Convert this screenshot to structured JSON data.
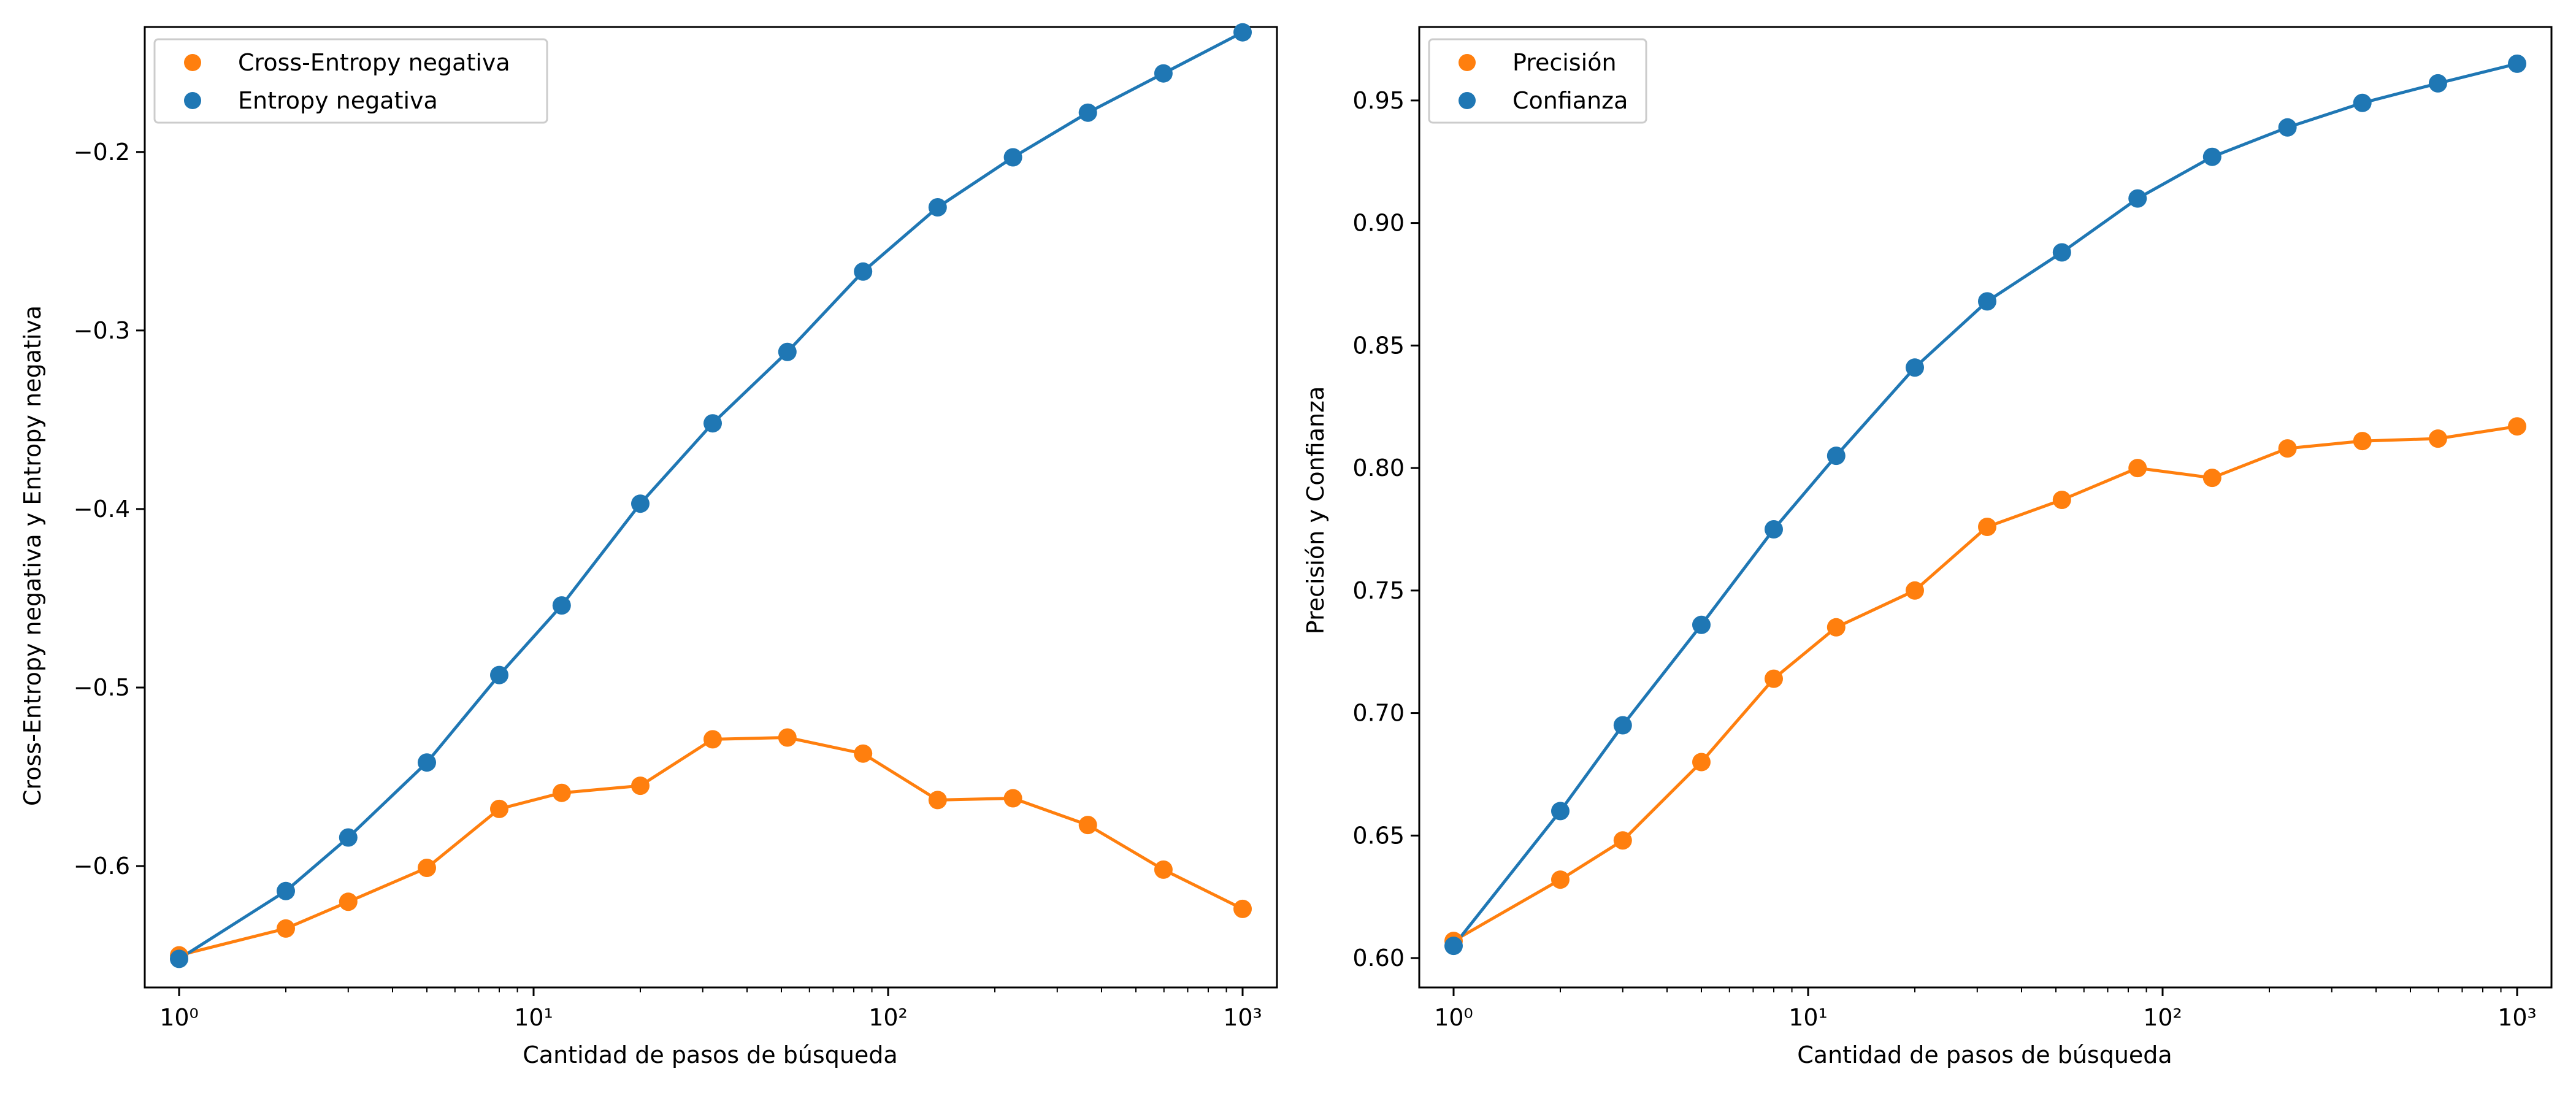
{
  "chart_data": [
    {
      "type": "line",
      "xscale": "log",
      "xlim": [
        0.8,
        1250
      ],
      "ylim": [
        -0.668,
        -0.13
      ],
      "xlabel": "Cantidad de pasos de búsqueda",
      "ylabel": "Cross-Entropy negativa y Entropy negativa",
      "x_ticks": [
        1,
        10,
        100,
        1000
      ],
      "x_tick_labels": [
        "10⁰",
        "10¹",
        "10²",
        "10³"
      ],
      "y_ticks": [
        -0.6,
        -0.5,
        -0.4,
        -0.3,
        -0.2
      ],
      "y_tick_labels": [
        "−0.6",
        "−0.5",
        "−0.4",
        "−0.3",
        "−0.2"
      ],
      "legend_position": "top-left",
      "grid": false,
      "x": [
        1,
        2,
        3,
        5,
        8,
        12,
        20,
        32,
        52,
        85,
        138,
        225,
        366,
        598,
        1000
      ],
      "series": [
        {
          "name": "Cross-Entropy negativa",
          "color": "#ff7f0e",
          "values": [
            -0.65,
            -0.635,
            -0.62,
            -0.601,
            -0.568,
            -0.559,
            -0.555,
            -0.529,
            -0.528,
            -0.537,
            -0.563,
            -0.562,
            -0.577,
            -0.602,
            -0.624
          ]
        },
        {
          "name": "Entropy negativa",
          "color": "#1f77b4",
          "values": [
            -0.652,
            -0.614,
            -0.584,
            -0.542,
            -0.493,
            -0.454,
            -0.397,
            -0.352,
            -0.312,
            -0.267,
            -0.231,
            -0.203,
            -0.178,
            -0.156,
            -0.133
          ]
        }
      ]
    },
    {
      "type": "line",
      "xscale": "log",
      "xlim": [
        0.8,
        1250
      ],
      "ylim": [
        0.588,
        0.98
      ],
      "xlabel": "Cantidad de pasos de búsqueda",
      "ylabel": "Precisión y Confianza",
      "x_ticks": [
        1,
        10,
        100,
        1000
      ],
      "x_tick_labels": [
        "10⁰",
        "10¹",
        "10²",
        "10³"
      ],
      "y_ticks": [
        0.6,
        0.65,
        0.7,
        0.75,
        0.8,
        0.85,
        0.9,
        0.95
      ],
      "y_tick_labels": [
        "0.60",
        "0.65",
        "0.70",
        "0.75",
        "0.80",
        "0.85",
        "0.90",
        "0.95"
      ],
      "legend_position": "top-left",
      "grid": false,
      "x": [
        1,
        2,
        3,
        5,
        8,
        12,
        20,
        32,
        52,
        85,
        138,
        225,
        366,
        598,
        1000
      ],
      "series": [
        {
          "name": "Precisión",
          "color": "#ff7f0e",
          "values": [
            0.607,
            0.632,
            0.648,
            0.68,
            0.714,
            0.735,
            0.75,
            0.776,
            0.787,
            0.8,
            0.796,
            0.808,
            0.811,
            0.812,
            0.817
          ]
        },
        {
          "name": "Confianza",
          "color": "#1f77b4",
          "values": [
            0.605,
            0.66,
            0.695,
            0.736,
            0.775,
            0.805,
            0.841,
            0.868,
            0.888,
            0.91,
            0.927,
            0.939,
            0.949,
            0.957,
            0.965
          ]
        }
      ]
    }
  ]
}
